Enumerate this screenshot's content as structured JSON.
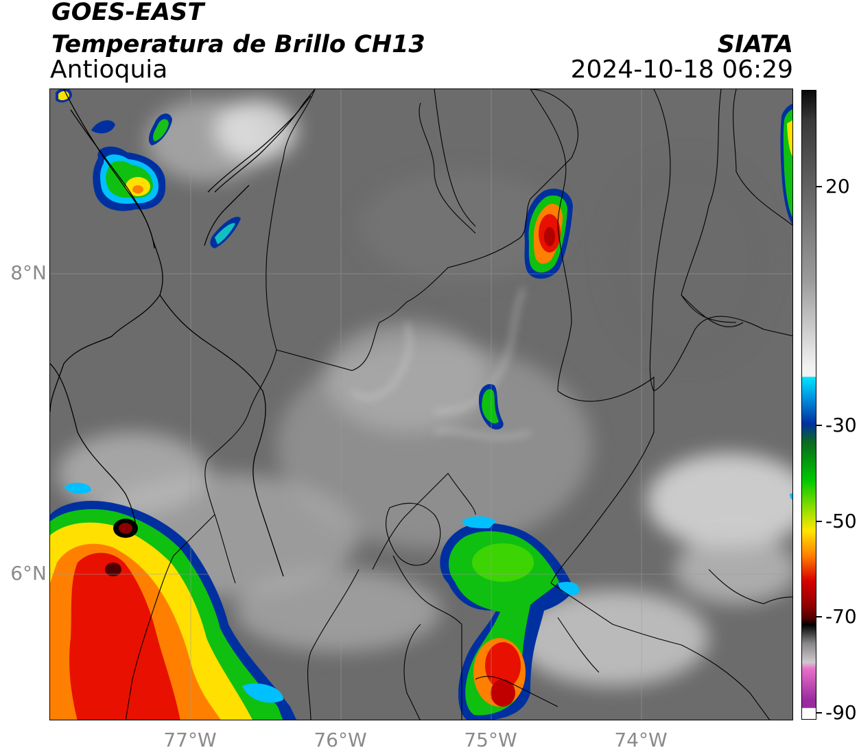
{
  "header": {
    "title_line1": "GOES-EAST",
    "title_line2": "Temperatura de Brillo CH13",
    "region": "Antioquia",
    "brand": "SIATA",
    "timestamp": "2024-10-18 06:29"
  },
  "map": {
    "lat_labels": [
      "8°N",
      "6°N"
    ],
    "lon_labels": [
      "77°W",
      "76°W",
      "75°W",
      "74°W"
    ],
    "background_color": "#6e6e6e",
    "border_color": "#000000"
  },
  "colorbar": {
    "tick_labels": [
      "20",
      "-30",
      "-50",
      "-70",
      "-90"
    ],
    "colors": {
      "top": "#0a0a0a",
      "gray_mid": "#9a9a9a",
      "gray_light": "#f2f2f2",
      "cyan": "#00e5ff",
      "blue": "#0030a0",
      "green": "#00c800",
      "yellow": "#ffe600",
      "orange": "#ff8000",
      "red": "#d80000",
      "dark_red": "#500000",
      "black": "#000000",
      "pink": "#e870c8",
      "magenta": "#9a2aa0",
      "bottom": "#ffffff"
    }
  }
}
